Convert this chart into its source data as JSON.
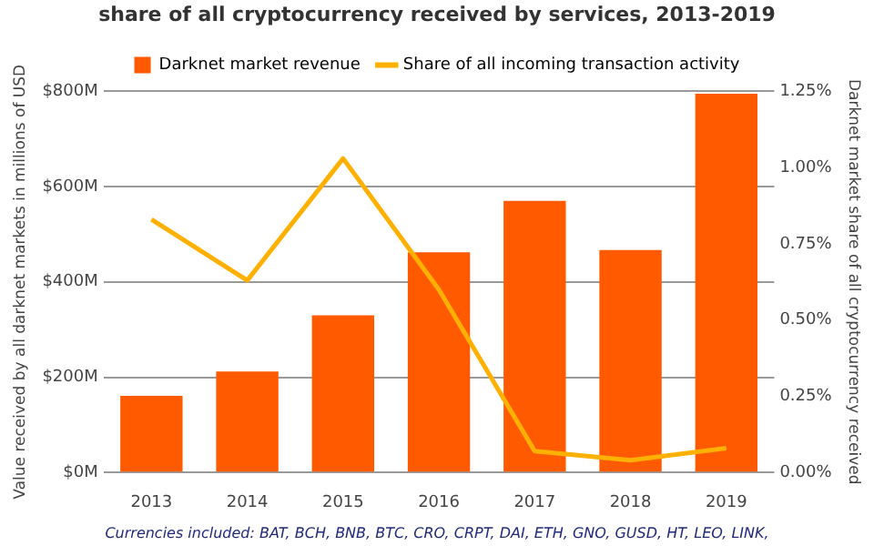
{
  "chart_data": {
    "type": "bar",
    "title": "share of all cryptocurrency received by services, 2013-2019",
    "categories": [
      "2013",
      "2014",
      "2015",
      "2016",
      "2017",
      "2018",
      "2019"
    ],
    "series": [
      {
        "name": "Darknet market revenue",
        "color": "#ff5a00",
        "values": [
          161,
          212,
          330,
          462,
          570,
          467,
          795
        ]
      },
      {
        "name": "Share of all incoming transaction activity",
        "type": "line",
        "axis": "y2",
        "color": "#ffb000",
        "values": [
          0.83,
          0.63,
          1.03,
          0.6,
          0.07,
          0.04,
          0.08
        ]
      }
    ],
    "ylabel": "Value received by all darknet markets in millions of USD",
    "y2label": "Darknet market share of all cryptocurrency received",
    "ylim": [
      0,
      800
    ],
    "yticks": [
      {
        "value": 0,
        "label": "$0M"
      },
      {
        "value": 200,
        "label": "$200M"
      },
      {
        "value": 400,
        "label": "$400M"
      },
      {
        "value": 600,
        "label": "$600M"
      },
      {
        "value": 800,
        "label": "$800M"
      }
    ],
    "y2lim": [
      0,
      1.25
    ],
    "y2ticks": [
      {
        "value": 0,
        "label": "0.00%"
      },
      {
        "value": 0.25,
        "label": "0.25%"
      },
      {
        "value": 0.5,
        "label": "0.50%"
      },
      {
        "value": 0.75,
        "label": "0.75%"
      },
      {
        "value": 1,
        "label": "1.00%"
      },
      {
        "value": 1.25,
        "label": "1.25%"
      }
    ],
    "grid": "y",
    "legend": "top",
    "marker": "none",
    "annotations": [
      "Currencies included: BAT, BCH, BNB, BTC, CRO, CRPT, DAI, ETH, GNO, GUSD, HT, LEO, LINK,"
    ]
  }
}
